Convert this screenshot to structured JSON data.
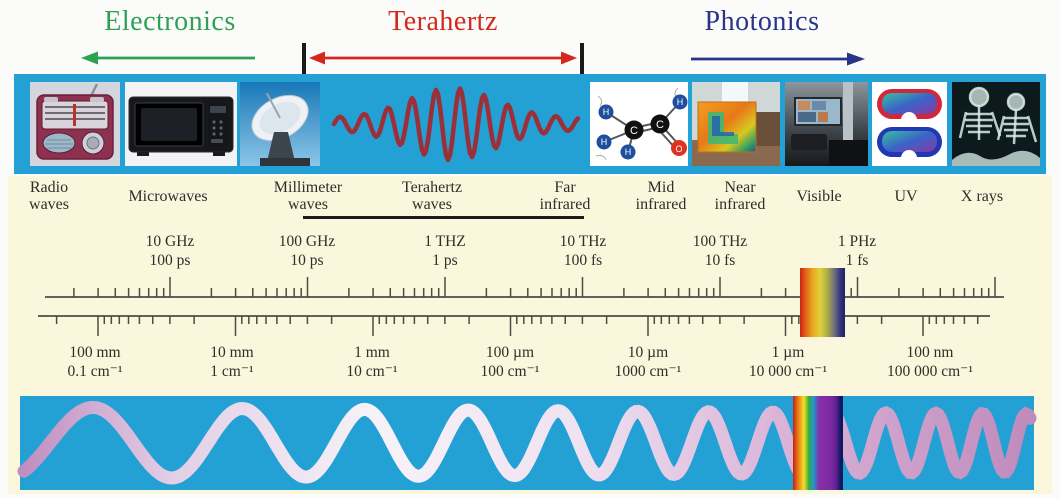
{
  "header": {
    "electronics": {
      "label": "Electronics",
      "color": "#2ea153"
    },
    "terahertz": {
      "label": "Terahertz",
      "color": "#d4281e"
    },
    "photonics": {
      "label": "Photonics",
      "color": "#283488"
    }
  },
  "photo_strip": {
    "items": [
      {
        "name": "radio-photo"
      },
      {
        "name": "microwave-oven-photo"
      },
      {
        "name": "satellite-dish-photo"
      },
      {
        "name": "terahertz-pulse-wave"
      },
      {
        "name": "molecule-diagram-photo"
      },
      {
        "name": "thermal-image-photo"
      },
      {
        "name": "tv-room-photo"
      },
      {
        "name": "goggles-photo"
      },
      {
        "name": "xray-photo"
      }
    ]
  },
  "bands": [
    {
      "label": "Radio\nwaves"
    },
    {
      "label": "Microwaves"
    },
    {
      "label": "Millimeter\nwaves"
    },
    {
      "label": "Terahertz\nwaves"
    },
    {
      "label": "Far\ninfrared"
    },
    {
      "label": "Mid\ninfrared"
    },
    {
      "label": "Near\ninfrared"
    },
    {
      "label": "Visible"
    },
    {
      "label": "UV"
    },
    {
      "label": "X rays"
    }
  ],
  "frequency_scale": [
    {
      "frequency": "10 GHz",
      "period": "100 ps"
    },
    {
      "frequency": "100 GHz",
      "period": "10 ps"
    },
    {
      "frequency": "1 THZ",
      "period": "1 ps"
    },
    {
      "frequency": "10 THz",
      "period": "100 fs"
    },
    {
      "frequency": "100 THz",
      "period": "10 fs"
    },
    {
      "frequency": "1 PHz",
      "period": "1 fs"
    }
  ],
  "wavelength_scale": [
    {
      "wavelength": "100 mm",
      "wavenumber": "0.1 cm⁻¹"
    },
    {
      "wavelength": "10 mm",
      "wavenumber": "1 cm⁻¹"
    },
    {
      "wavelength": "1 mm",
      "wavenumber": "10 cm⁻¹"
    },
    {
      "wavelength": "100 µm",
      "wavenumber": "100 cm⁻¹"
    },
    {
      "wavelength": "10 µm",
      "wavenumber": "1000 cm⁻¹"
    },
    {
      "wavelength": "1 µm",
      "wavenumber": "10 000 cm⁻¹"
    },
    {
      "wavelength": "100 nm",
      "wavenumber": "100 000 cm⁻¹"
    }
  ]
}
